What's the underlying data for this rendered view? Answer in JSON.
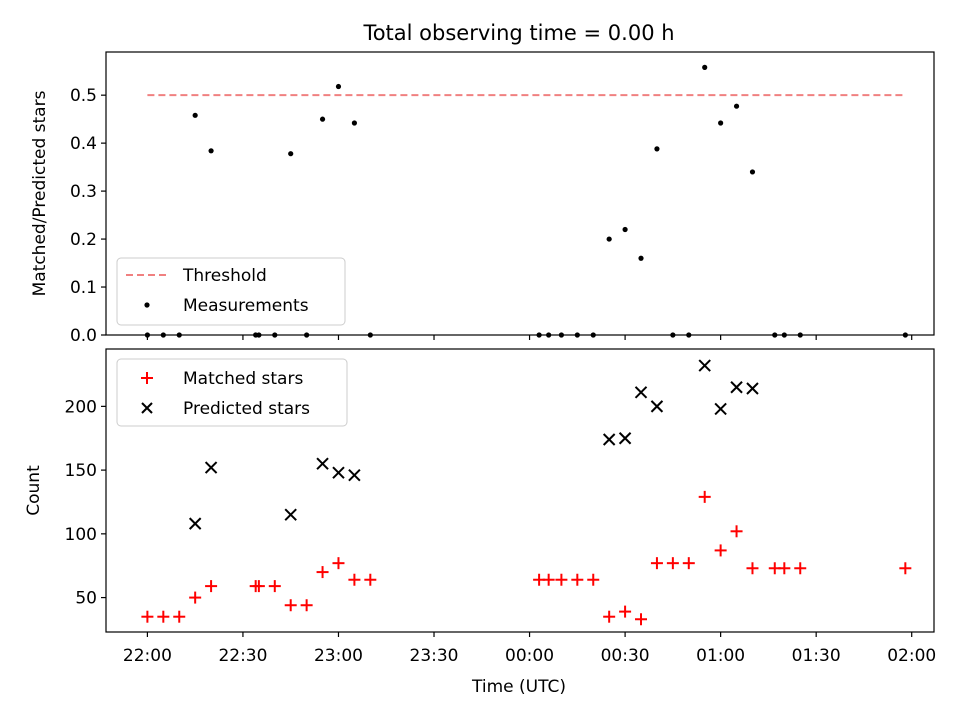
{
  "chart_data": [
    {
      "type": "scatter",
      "title": "Total observing time = 0.00 h",
      "xlabel": "",
      "ylabel": "Matched/Predicted stars",
      "xlim": [
        "21:47",
        "02:07"
      ],
      "ylim": [
        0,
        0.59
      ],
      "yticks": [
        0.0,
        0.1,
        0.2,
        0.3,
        0.4,
        0.5
      ],
      "ytick_labels": [
        "0.0",
        "0.1",
        "0.2",
        "0.3",
        "0.4",
        "0.5"
      ],
      "xticks": [
        "22:00",
        "22:30",
        "23:00",
        "23:30",
        "00:00",
        "00:30",
        "01:00",
        "01:30",
        "02:00"
      ],
      "xtick_labels_visible": false,
      "legend_position": "lower-left",
      "threshold": {
        "name": "Threshold",
        "value": 0.5,
        "x_range": [
          "22:00",
          "01:58"
        ],
        "color": "#f08080"
      },
      "series": [
        {
          "name": "Measurements",
          "marker": "dot",
          "color": "#000000",
          "points": [
            [
              "22:00",
              0.0
            ],
            [
              "22:05",
              0.0
            ],
            [
              "22:10",
              0.0
            ],
            [
              "22:15",
              0.458
            ],
            [
              "22:20",
              0.384
            ],
            [
              "22:34",
              0.0
            ],
            [
              "22:35",
              0.0
            ],
            [
              "22:40",
              0.0
            ],
            [
              "22:45",
              0.378
            ],
            [
              "22:50",
              0.0
            ],
            [
              "22:55",
              0.45
            ],
            [
              "23:00",
              0.518
            ],
            [
              "23:05",
              0.442
            ],
            [
              "23:10",
              0.0
            ],
            [
              "00:03",
              0.0
            ],
            [
              "00:06",
              0.0
            ],
            [
              "00:10",
              0.0
            ],
            [
              "00:15",
              0.0
            ],
            [
              "00:20",
              0.0
            ],
            [
              "00:25",
              0.2
            ],
            [
              "00:30",
              0.22
            ],
            [
              "00:35",
              0.16
            ],
            [
              "00:40",
              0.388
            ],
            [
              "00:45",
              0.0
            ],
            [
              "00:50",
              0.0
            ],
            [
              "00:55",
              0.558
            ],
            [
              "01:00",
              0.442
            ],
            [
              "01:05",
              0.477
            ],
            [
              "01:10",
              0.34
            ],
            [
              "01:17",
              0.0
            ],
            [
              "01:20",
              0.0
            ],
            [
              "01:25",
              0.0
            ],
            [
              "01:58",
              0.0
            ]
          ]
        }
      ]
    },
    {
      "type": "scatter",
      "title": "",
      "xlabel": "Time (UTC)",
      "ylabel": "Count",
      "xlim": [
        "21:47",
        "02:07"
      ],
      "ylim": [
        23,
        245
      ],
      "yticks": [
        50,
        100,
        150,
        200
      ],
      "ytick_labels": [
        "50",
        "100",
        "150",
        "200"
      ],
      "xticks": [
        "22:00",
        "22:30",
        "23:00",
        "23:30",
        "00:00",
        "00:30",
        "01:00",
        "01:30",
        "02:00"
      ],
      "xtick_labels": [
        "22:00",
        "22:30",
        "23:00",
        "23:30",
        "00:00",
        "00:30",
        "01:00",
        "01:30",
        "02:00"
      ],
      "legend_position": "upper-left",
      "series": [
        {
          "name": "Matched stars",
          "marker": "plus",
          "color": "#ff0000",
          "points": [
            [
              "22:00",
              35
            ],
            [
              "22:05",
              35
            ],
            [
              "22:10",
              35
            ],
            [
              "22:15",
              50
            ],
            [
              "22:20",
              59
            ],
            [
              "22:34",
              59
            ],
            [
              "22:35",
              59
            ],
            [
              "22:40",
              59
            ],
            [
              "22:45",
              44
            ],
            [
              "22:50",
              44
            ],
            [
              "22:55",
              70
            ],
            [
              "23:00",
              77
            ],
            [
              "23:05",
              64
            ],
            [
              "23:10",
              64
            ],
            [
              "00:03",
              64
            ],
            [
              "00:06",
              64
            ],
            [
              "00:10",
              64
            ],
            [
              "00:15",
              64
            ],
            [
              "00:20",
              64
            ],
            [
              "00:25",
              35
            ],
            [
              "00:30",
              39
            ],
            [
              "00:35",
              33
            ],
            [
              "00:40",
              77
            ],
            [
              "00:45",
              77
            ],
            [
              "00:50",
              77
            ],
            [
              "00:55",
              129
            ],
            [
              "01:00",
              87
            ],
            [
              "01:05",
              102
            ],
            [
              "01:10",
              73
            ],
            [
              "01:17",
              73
            ],
            [
              "01:20",
              73
            ],
            [
              "01:25",
              73
            ],
            [
              "01:58",
              73
            ]
          ]
        },
        {
          "name": "Predicted stars",
          "marker": "x",
          "color": "#000000",
          "points": [
            [
              "22:15",
              108
            ],
            [
              "22:20",
              152
            ],
            [
              "22:45",
              115
            ],
            [
              "22:55",
              155
            ],
            [
              "23:00",
              148
            ],
            [
              "23:05",
              146
            ],
            [
              "00:25",
              174
            ],
            [
              "00:30",
              175
            ],
            [
              "00:35",
              211
            ],
            [
              "00:40",
              200
            ],
            [
              "00:55",
              232
            ],
            [
              "01:00",
              198
            ],
            [
              "01:05",
              215
            ],
            [
              "01:10",
              214
            ]
          ]
        }
      ]
    }
  ]
}
